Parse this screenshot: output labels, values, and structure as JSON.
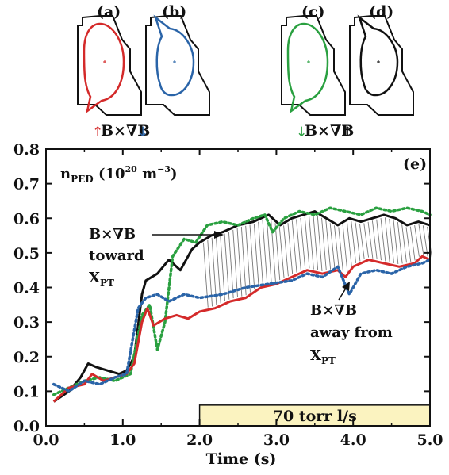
{
  "panels": [
    {
      "label": "(a)",
      "color": "#d42a2a",
      "shape": "lower-null"
    },
    {
      "label": "(b)",
      "color": "#2a64a8",
      "shape": "upper-null"
    },
    {
      "label": "(c)",
      "color": "#2aa040",
      "shape": "lower-null"
    },
    {
      "label": "(d)",
      "color": "#111111",
      "shape": "upper-null"
    }
  ],
  "drift_labels": {
    "left": "B×∇B",
    "right": "B×∇B",
    "left_arrows": [
      "up",
      "down"
    ],
    "right_arrows": [
      "down",
      "up"
    ],
    "left_arrow_colors": [
      "#d42a2a",
      "#2a64a8"
    ],
    "right_arrow_colors": [
      "#2aa040",
      "#111111"
    ]
  },
  "chart_data": {
    "type": "line",
    "panel_label": "(e)",
    "ylabel_main": "n",
    "ylabel_sub": "PED",
    "ylabel_units_open": " (10",
    "ylabel_units_exp": "20",
    "ylabel_units_mid": " m",
    "ylabel_units_exp2": "−3",
    "ylabel_units_close": ")",
    "xlabel": "Time (s)",
    "xlim": [
      0,
      5
    ],
    "ylim": [
      0,
      0.8
    ],
    "xticks": [
      "0.0",
      "1.0",
      "2.0",
      "3.0",
      "4.0",
      "5.0"
    ],
    "yticks": [
      "0.0",
      "0.1",
      "0.2",
      "0.3",
      "0.4",
      "0.5",
      "0.6",
      "0.7",
      "0.8"
    ],
    "gas_puff": {
      "label": "70 torr l/s",
      "x_start": 2.0,
      "x_end": 5.0,
      "y_top": 0.06,
      "color": "#fbf3c0"
    },
    "annotations": {
      "toward": {
        "line1": "B×∇B",
        "line2": "toward",
        "line3_main": "X",
        "line3_sub": "PT"
      },
      "away": {
        "line1": "B×∇B",
        "line2": "away from",
        "line3_main": "X",
        "line3_sub": "PT"
      }
    },
    "series": [
      {
        "color": "#111111",
        "style": "solid",
        "x": [
          0.1,
          0.3,
          0.45,
          0.55,
          0.65,
          0.8,
          0.95,
          1.05,
          1.15,
          1.25,
          1.3,
          1.45,
          1.6,
          1.75,
          1.9,
          2.0,
          2.15,
          2.3,
          2.5,
          2.7,
          2.9,
          3.05,
          3.2,
          3.35,
          3.5,
          3.65,
          3.8,
          3.95,
          4.1,
          4.25,
          4.4,
          4.55,
          4.7,
          4.85,
          5.0
        ],
        "y": [
          0.07,
          0.1,
          0.14,
          0.18,
          0.17,
          0.16,
          0.15,
          0.16,
          0.2,
          0.38,
          0.42,
          0.44,
          0.48,
          0.45,
          0.51,
          0.53,
          0.55,
          0.56,
          0.58,
          0.59,
          0.61,
          0.58,
          0.6,
          0.61,
          0.62,
          0.6,
          0.58,
          0.6,
          0.59,
          0.6,
          0.61,
          0.6,
          0.58,
          0.59,
          0.58
        ]
      },
      {
        "color": "#2aa040",
        "style": "dotted",
        "x": [
          0.1,
          0.3,
          0.5,
          0.7,
          0.9,
          1.1,
          1.25,
          1.35,
          1.45,
          1.55,
          1.65,
          1.8,
          1.95,
          2.1,
          2.3,
          2.5,
          2.7,
          2.85,
          2.95,
          3.1,
          3.3,
          3.5,
          3.7,
          3.9,
          4.1,
          4.3,
          4.5,
          4.7,
          4.9,
          5.0
        ],
        "y": [
          0.09,
          0.11,
          0.13,
          0.14,
          0.13,
          0.15,
          0.32,
          0.35,
          0.22,
          0.3,
          0.49,
          0.54,
          0.53,
          0.58,
          0.59,
          0.58,
          0.6,
          0.61,
          0.56,
          0.6,
          0.62,
          0.61,
          0.63,
          0.62,
          0.61,
          0.63,
          0.62,
          0.63,
          0.62,
          0.61
        ]
      },
      {
        "color": "#d42a2a",
        "style": "solid",
        "x": [
          0.1,
          0.3,
          0.5,
          0.6,
          0.75,
          0.9,
          1.05,
          1.15,
          1.25,
          1.32,
          1.4,
          1.55,
          1.7,
          1.85,
          2.0,
          2.2,
          2.4,
          2.6,
          2.8,
          3.0,
          3.2,
          3.4,
          3.6,
          3.8,
          3.9,
          4.0,
          4.2,
          4.4,
          4.6,
          4.8,
          4.9,
          5.0
        ],
        "y": [
          0.07,
          0.11,
          0.12,
          0.15,
          0.13,
          0.14,
          0.15,
          0.18,
          0.3,
          0.34,
          0.29,
          0.31,
          0.32,
          0.31,
          0.33,
          0.34,
          0.36,
          0.37,
          0.4,
          0.41,
          0.43,
          0.45,
          0.44,
          0.45,
          0.43,
          0.46,
          0.48,
          0.47,
          0.46,
          0.47,
          0.49,
          0.48
        ]
      },
      {
        "color": "#2a64a8",
        "style": "dotted",
        "x": [
          0.1,
          0.3,
          0.5,
          0.7,
          0.9,
          1.05,
          1.2,
          1.3,
          1.45,
          1.6,
          1.8,
          2.0,
          2.3,
          2.6,
          2.9,
          3.2,
          3.4,
          3.6,
          3.8,
          3.95,
          4.1,
          4.3,
          4.5,
          4.7,
          4.9,
          5.0
        ],
        "y": [
          0.12,
          0.1,
          0.13,
          0.12,
          0.14,
          0.15,
          0.34,
          0.37,
          0.38,
          0.36,
          0.38,
          0.37,
          0.38,
          0.4,
          0.41,
          0.42,
          0.44,
          0.43,
          0.46,
          0.38,
          0.44,
          0.45,
          0.44,
          0.46,
          0.47,
          0.48
        ]
      }
    ]
  }
}
